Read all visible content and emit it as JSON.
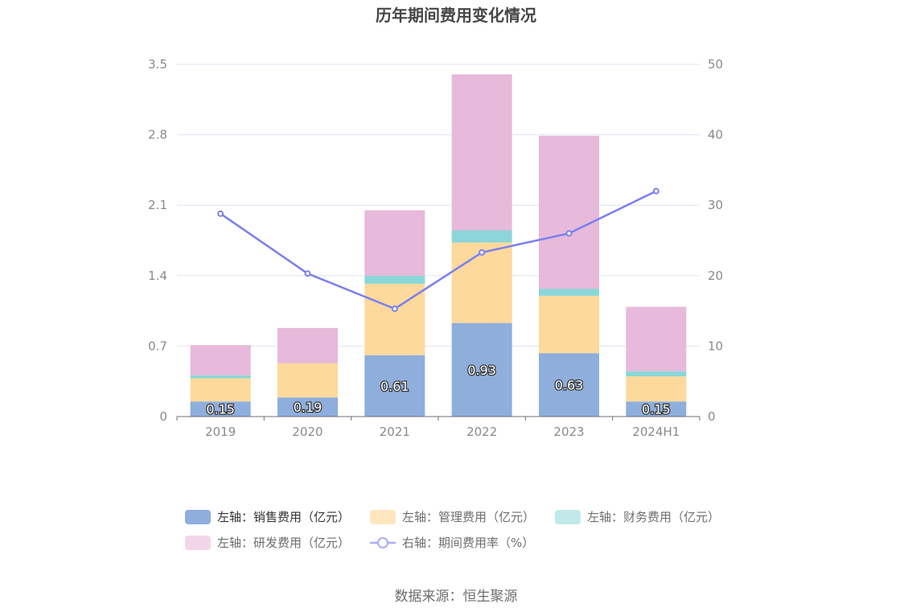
{
  "chart_data": {
    "type": "bar",
    "title": "历年期间费用变化情况",
    "categories": [
      "2019",
      "2020",
      "2021",
      "2022",
      "2023",
      "2024H1"
    ],
    "left_axis": {
      "ticks": [
        "0",
        "0.7",
        "1.4",
        "2.1",
        "2.8",
        "3.5"
      ],
      "ylim": [
        0,
        3.5
      ]
    },
    "right_axis": {
      "ticks": [
        "0",
        "10",
        "20",
        "30",
        "40",
        "50"
      ],
      "ylim": [
        0,
        50
      ]
    },
    "grid": true,
    "legend_position": "bottom",
    "series": [
      {
        "name": "左轴：销售费用（亿元）",
        "axis": "left",
        "stack": "cost",
        "color": "#8eaedc",
        "values": [
          0.15,
          0.19,
          0.61,
          0.93,
          0.63,
          0.15
        ],
        "labels": [
          "0.15",
          "0.19",
          "0.61",
          "0.93",
          "0.63",
          "0.15"
        ]
      },
      {
        "name": "左轴：管理费用（亿元）",
        "axis": "left",
        "stack": "cost",
        "color": "#fdd99c",
        "values": [
          0.23,
          0.34,
          0.71,
          0.8,
          0.57,
          0.25
        ]
      },
      {
        "name": "左轴：财务费用（亿元）",
        "axis": "left",
        "stack": "cost",
        "color": "#8ad6d8",
        "values": [
          0.03,
          0.0,
          0.08,
          0.12,
          0.07,
          0.05
        ]
      },
      {
        "name": "左轴：研发费用（亿元）",
        "axis": "left",
        "stack": "cost",
        "color": "#e7b9da",
        "values": [
          0.3,
          0.35,
          0.65,
          1.55,
          1.52,
          0.64
        ]
      },
      {
        "name": "右轴：期间费用率（%）",
        "axis": "right",
        "type": "line",
        "color": "#7b7ff0",
        "values": [
          28.8,
          20.3,
          15.3,
          23.3,
          26.0,
          32.0
        ]
      }
    ]
  },
  "source": "数据来源：恒生聚源"
}
